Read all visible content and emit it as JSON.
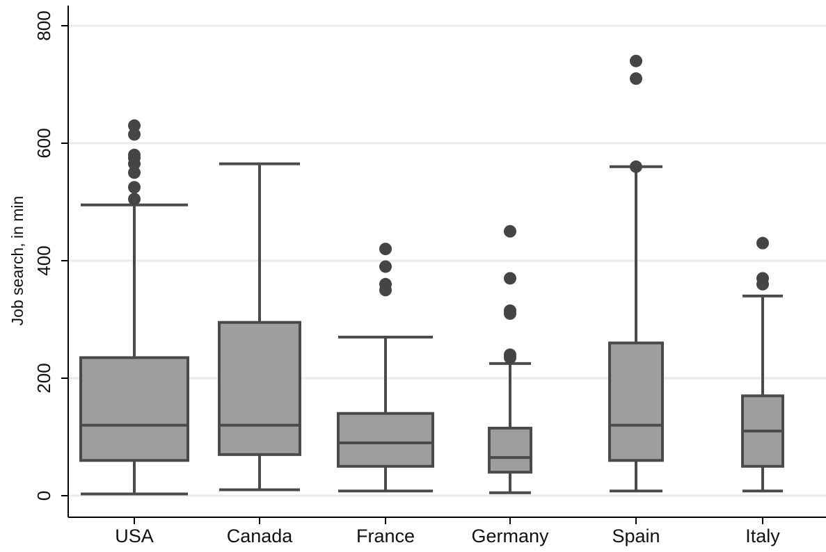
{
  "chart_data": {
    "type": "box",
    "title": "",
    "xlabel": "",
    "ylabel": "Job search, in min",
    "ylim": [
      0,
      800
    ],
    "yticks": [
      0,
      200,
      400,
      600,
      800
    ],
    "grid": true,
    "colors": {
      "box_fill": "#9e9e9e",
      "box_stroke": "#4a4a4a",
      "outlier": "#454545",
      "grid": "#ebebeb",
      "axis": "#000000"
    },
    "categories": [
      "USA",
      "Canada",
      "France",
      "Germany",
      "Spain",
      "Italy"
    ],
    "boxes": [
      {
        "category": "USA",
        "whisker_low": 3,
        "q1": 60,
        "median": 120,
        "q3": 235,
        "whisker_high": 495,
        "outliers": [
          505,
          525,
          550,
          565,
          575,
          580,
          615,
          630
        ]
      },
      {
        "category": "Canada",
        "whisker_low": 10,
        "q1": 70,
        "median": 120,
        "q3": 295,
        "whisker_high": 565,
        "outliers": []
      },
      {
        "category": "France",
        "whisker_low": 8,
        "q1": 50,
        "median": 90,
        "q3": 140,
        "whisker_high": 270,
        "outliers": [
          350,
          360,
          390,
          420
        ]
      },
      {
        "category": "Germany",
        "whisker_low": 5,
        "q1": 40,
        "median": 65,
        "q3": 115,
        "whisker_high": 225,
        "outliers": [
          235,
          240,
          310,
          315,
          370,
          450
        ]
      },
      {
        "category": "Spain",
        "whisker_low": 8,
        "q1": 60,
        "median": 120,
        "q3": 260,
        "whisker_high": 560,
        "outliers": [
          560,
          710,
          740
        ]
      },
      {
        "category": "Italy",
        "whisker_low": 8,
        "q1": 50,
        "median": 110,
        "q3": 170,
        "whisker_high": 340,
        "outliers": [
          360,
          370,
          430
        ]
      }
    ]
  }
}
